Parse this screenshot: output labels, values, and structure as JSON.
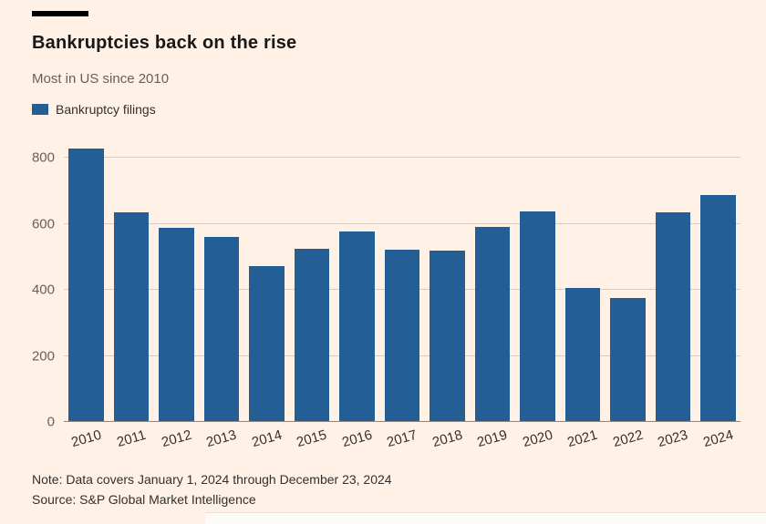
{
  "page": {
    "title": "Bankruptcies back on the rise",
    "subtitle": "Most in US since 2010",
    "legend_label": "Bankruptcy filings",
    "note": "Note: Data covers January 1, 2024 through December 23, 2024",
    "source": "Source: S&P Global Market Intelligence"
  },
  "colors": {
    "background": "#fff1e5",
    "bar": "#235e95",
    "gridline": "#d8ccc1",
    "text_muted": "#66605c",
    "text_dark": "#1a1817"
  },
  "chart_data": {
    "type": "bar",
    "title": "Bankruptcies back on the rise",
    "subtitle": "Most in US since 2010",
    "legend": [
      "Bankruptcy filings"
    ],
    "legend_position": "top-left",
    "categories": [
      "2010",
      "2011",
      "2012",
      "2013",
      "2014",
      "2015",
      "2016",
      "2017",
      "2018",
      "2019",
      "2020",
      "2021",
      "2022",
      "2023",
      "2024"
    ],
    "values": [
      827,
      634,
      588,
      560,
      471,
      524,
      576,
      521,
      519,
      590,
      638,
      407,
      374,
      636,
      687
    ],
    "xlabel": "",
    "ylabel": "",
    "ylim": [
      0,
      850
    ],
    "yticks": [
      0,
      200,
      400,
      600,
      800
    ],
    "grid": true
  }
}
